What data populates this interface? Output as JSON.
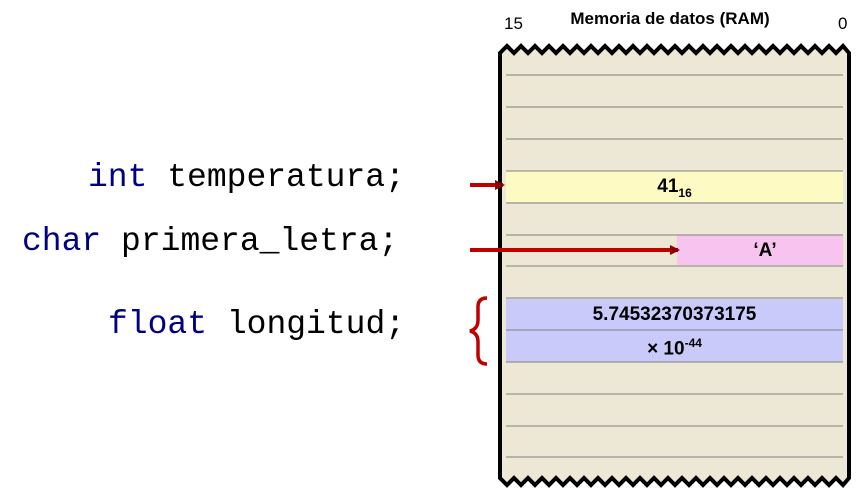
{
  "declarations": [
    {
      "type": "int",
      "name": "temperatura;"
    },
    {
      "type": "char",
      "name": "primera_letra;"
    },
    {
      "type": "float",
      "name": "longitud;"
    }
  ],
  "memory": {
    "title": "Memoria de datos (RAM)",
    "bit_high": "15",
    "bit_low": "0",
    "int_value": "41",
    "int_base": "16",
    "char_value": "‘A’",
    "float_mantissa": "5.74532370373175",
    "float_exponent_prefix": "× 10",
    "float_exponent": "-44"
  },
  "colors": {
    "memory_bg": "#ede7d5",
    "int_cell": "#fdfbc3",
    "char_cell": "#f9c3f0",
    "float_cell": "#c9c9fa",
    "arrow": "#c00000",
    "keyword": "#000080"
  }
}
